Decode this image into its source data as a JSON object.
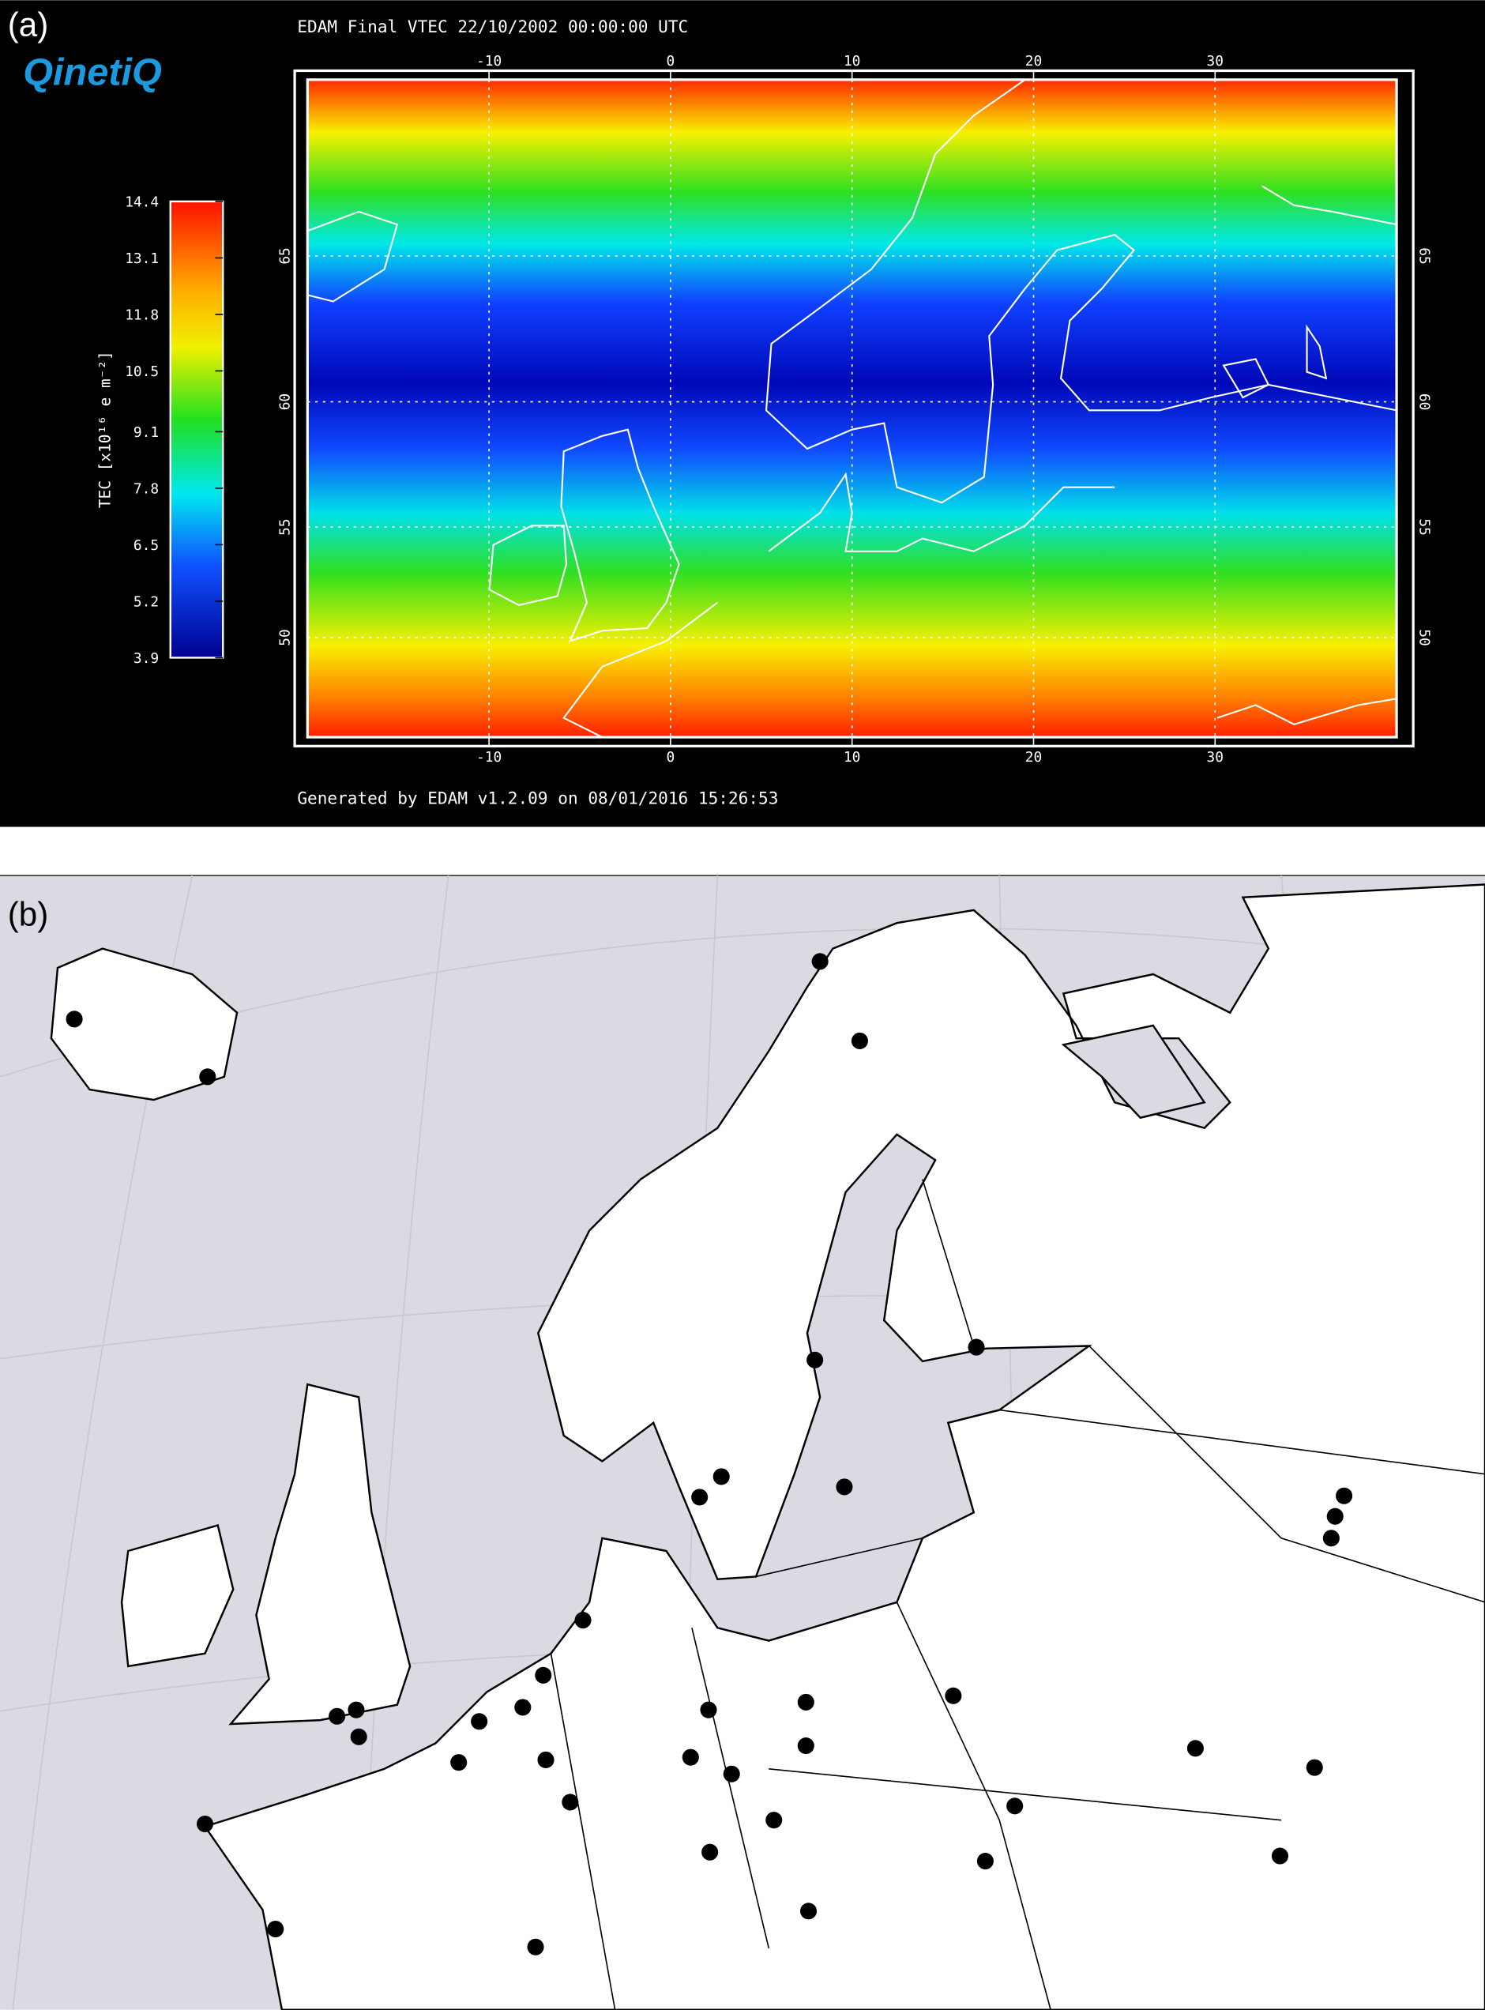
{
  "panel_a": {
    "label": "(a)",
    "logo": "QinetiQ",
    "title": "EDAM Final VTEC 22/10/2002 00:00:00 UTC",
    "footer": "Generated by EDAM v1.2.09 on 08/01/2016 15:26:53",
    "colorbar_label": "TEC [x10¹⁶ e m⁻²]",
    "colorbar_lim": [
      3.9,
      14.4
    ],
    "colorbar_ticks": [
      14.4,
      13.1,
      11.8,
      10.5,
      9.1,
      7.8,
      6.5,
      5.2,
      3.9
    ],
    "xlim": [
      -20,
      40
    ],
    "xticks": [
      -10,
      0,
      10,
      20,
      30
    ],
    "ylim": [
      45,
      70
    ],
    "yticks": [
      50,
      55,
      60,
      65
    ],
    "projection": "mercator",
    "grid": true
  },
  "panel_b": {
    "label": "(b)"
  }
}
